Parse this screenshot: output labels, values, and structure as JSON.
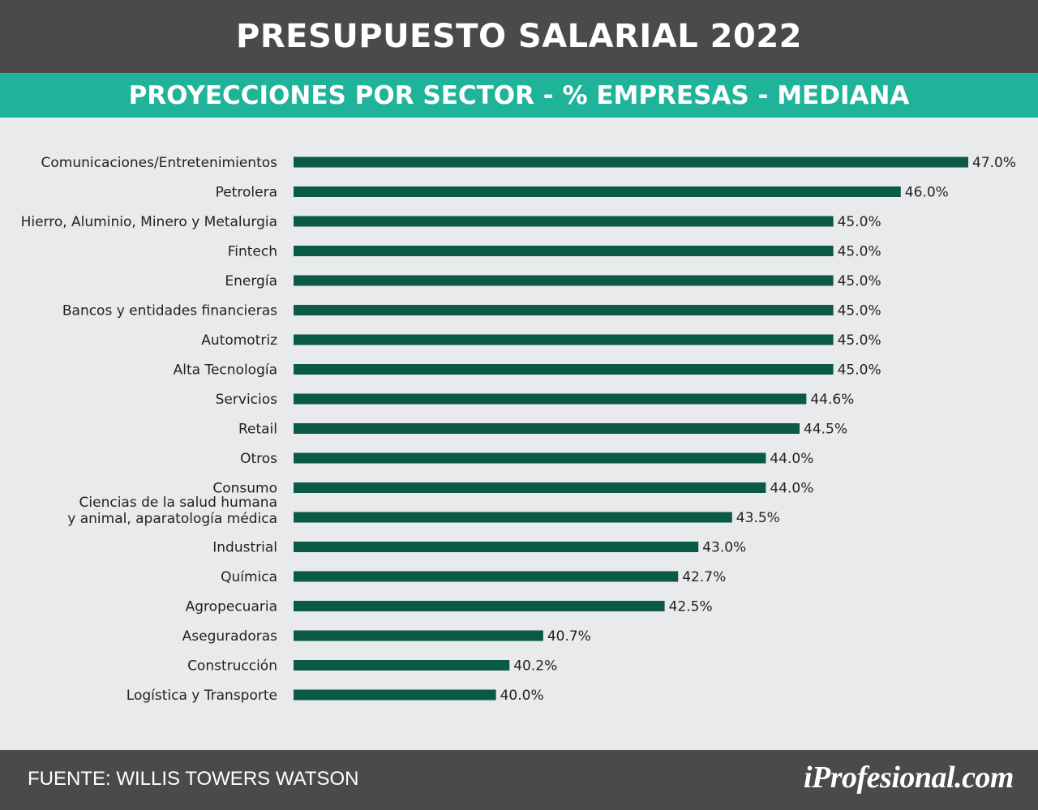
{
  "header": {
    "title": "PRESUPUESTO SALARIAL 2022"
  },
  "subheader": {
    "title": "PROYECCIONES POR SECTOR - % EMPRESAS - MEDIANA"
  },
  "footer": {
    "source": "FUENTE:  WILLIS TOWERS WATSON",
    "brand": "iProfesional.com"
  },
  "colors": {
    "header_bg": "#4a4a4a",
    "subheader_bg": "#1fb39a",
    "bar": "#0b5a47",
    "background": "#e9eaec",
    "label_text": "#222222"
  },
  "chart_data": {
    "type": "bar",
    "orientation": "horizontal",
    "title": "PRESUPUESTO SALARIAL 2022",
    "subtitle": "PROYECCIONES POR SECTOR - % EMPRESAS - MEDIANA",
    "xlabel": "",
    "ylabel": "",
    "grid": false,
    "categories": [
      [
        "Comunicaciones/Entretenimientos"
      ],
      [
        "Petrolera"
      ],
      [
        "Hierro, Aluminio, Minero y Metalurgia"
      ],
      [
        "Fintech"
      ],
      [
        "Energía"
      ],
      [
        "Bancos y entidades financieras"
      ],
      [
        "Automotriz"
      ],
      [
        "Alta Tecnología"
      ],
      [
        "Servicios"
      ],
      [
        "Retail"
      ],
      [
        "Otros"
      ],
      [
        "Consumo"
      ],
      [
        "Ciencias de la salud humana",
        "y animal, aparatología médica"
      ],
      [
        "Industrial"
      ],
      [
        "Química"
      ],
      [
        "Agropecuaria"
      ],
      [
        "Aseguradoras"
      ],
      [
        "Construcción"
      ],
      [
        "Logística y Transporte"
      ]
    ],
    "values": [
      47.0,
      46.0,
      45.0,
      45.0,
      45.0,
      45.0,
      45.0,
      45.0,
      44.6,
      44.5,
      44.0,
      44.0,
      43.5,
      43.0,
      42.7,
      42.5,
      40.7,
      40.2,
      40.0
    ],
    "value_labels": [
      "47.0%",
      "46.0%",
      "45.0%",
      "45.0%",
      "45.0%",
      "45.0%",
      "45.0%",
      "45.0%",
      "44.6%",
      "44.5%",
      "44.0%",
      "44.0%",
      "43.5%",
      "43.0%",
      "42.7%",
      "42.5%",
      "40.7%",
      "40.2%",
      "40.0%"
    ],
    "xlim": [
      37,
      47
    ]
  }
}
